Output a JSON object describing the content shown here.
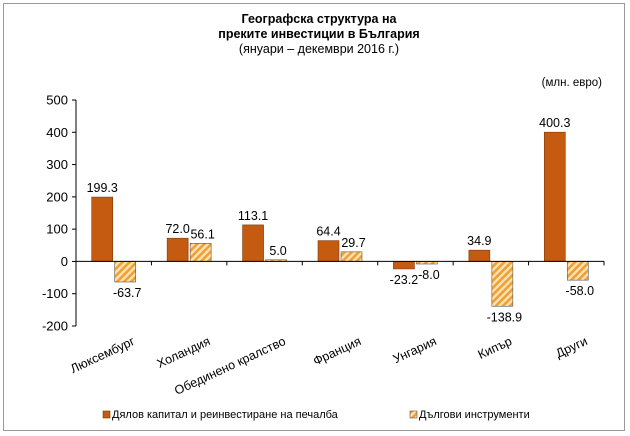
{
  "chart_data": {
    "type": "bar",
    "title_line1": "Географска структура на",
    "title_line2": "преките инвестиции в България",
    "subtitle": "(януари – декември 2016 г.)",
    "unit": "(млн. евро)",
    "categories": [
      "Люксембург",
      "Холандия",
      "Обединено кралство",
      "Франция",
      "Унгария",
      "Кипър",
      "Други"
    ],
    "series": [
      {
        "name": "Дялов капитал и реинвестиране на печалба",
        "values": [
          199.3,
          72.0,
          113.1,
          64.4,
          -23.2,
          34.9,
          400.3
        ],
        "labels": [
          "199.3",
          "72.0",
          "113.1",
          "64.4",
          "-23.2",
          "34.9",
          "400.3"
        ],
        "color": "#c55a11",
        "pattern": "solid"
      },
      {
        "name": "Дългови инструменти",
        "values": [
          -63.7,
          56.1,
          5.0,
          29.7,
          -8.0,
          -138.9,
          -58.0
        ],
        "labels": [
          "-63.7",
          "56.1",
          "5.0",
          "29.7",
          "-8.0",
          "-138.9",
          "-58.0"
        ],
        "color": "#f4a93c",
        "pattern": "diagonal-stripes"
      }
    ],
    "ylim": [
      -200,
      500
    ],
    "yticks": [
      500,
      400,
      300,
      200,
      100,
      0,
      -100,
      -200
    ],
    "ytick_labels": [
      "500",
      "400",
      "300",
      "200",
      "100",
      "0",
      "-100",
      "-200"
    ],
    "grid": false,
    "legend_position": "bottom"
  }
}
